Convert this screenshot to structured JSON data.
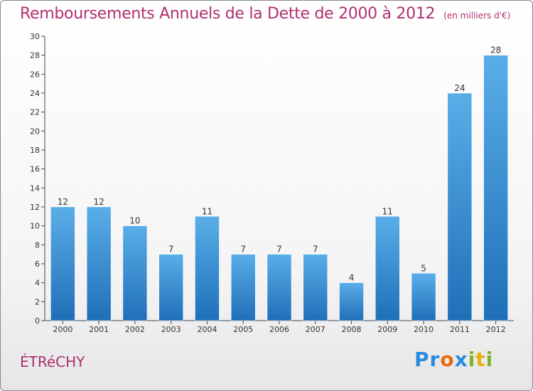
{
  "chart_data": {
    "type": "bar",
    "title": "Remboursements Annuels de la Dette de 2000 à 2012",
    "subtitle": "(en milliers d'€)",
    "categories": [
      "2000",
      "2001",
      "2002",
      "2003",
      "2004",
      "2005",
      "2006",
      "2007",
      "2008",
      "2009",
      "2010",
      "2011",
      "2012"
    ],
    "values": [
      12,
      12,
      10,
      7,
      11,
      7,
      7,
      7,
      4,
      11,
      5,
      24,
      28
    ],
    "ylim": [
      0,
      30
    ],
    "yticks": [
      0,
      2,
      4,
      6,
      8,
      10,
      12,
      14,
      16,
      18,
      20,
      22,
      24,
      26,
      28,
      30
    ],
    "xlabel": "",
    "ylabel": "",
    "grid": false,
    "legend": "none",
    "bar_color": "#3a8fd6",
    "bar_color_light": "#5aaee8",
    "bar_color_dark": "#1f6fb8"
  },
  "commune": "ÉTRéCHY",
  "brand": {
    "letters": [
      "P",
      "r",
      "o",
      "x",
      "i",
      "t",
      "i"
    ],
    "colors": [
      "#2a8be0",
      "#2a8be0",
      "#e86a10",
      "#2a8be0",
      "#7ab52a",
      "#e8b010",
      "#7ab52a"
    ]
  },
  "theme": {
    "title_color": "#b03070",
    "axis_color": "#444444"
  }
}
